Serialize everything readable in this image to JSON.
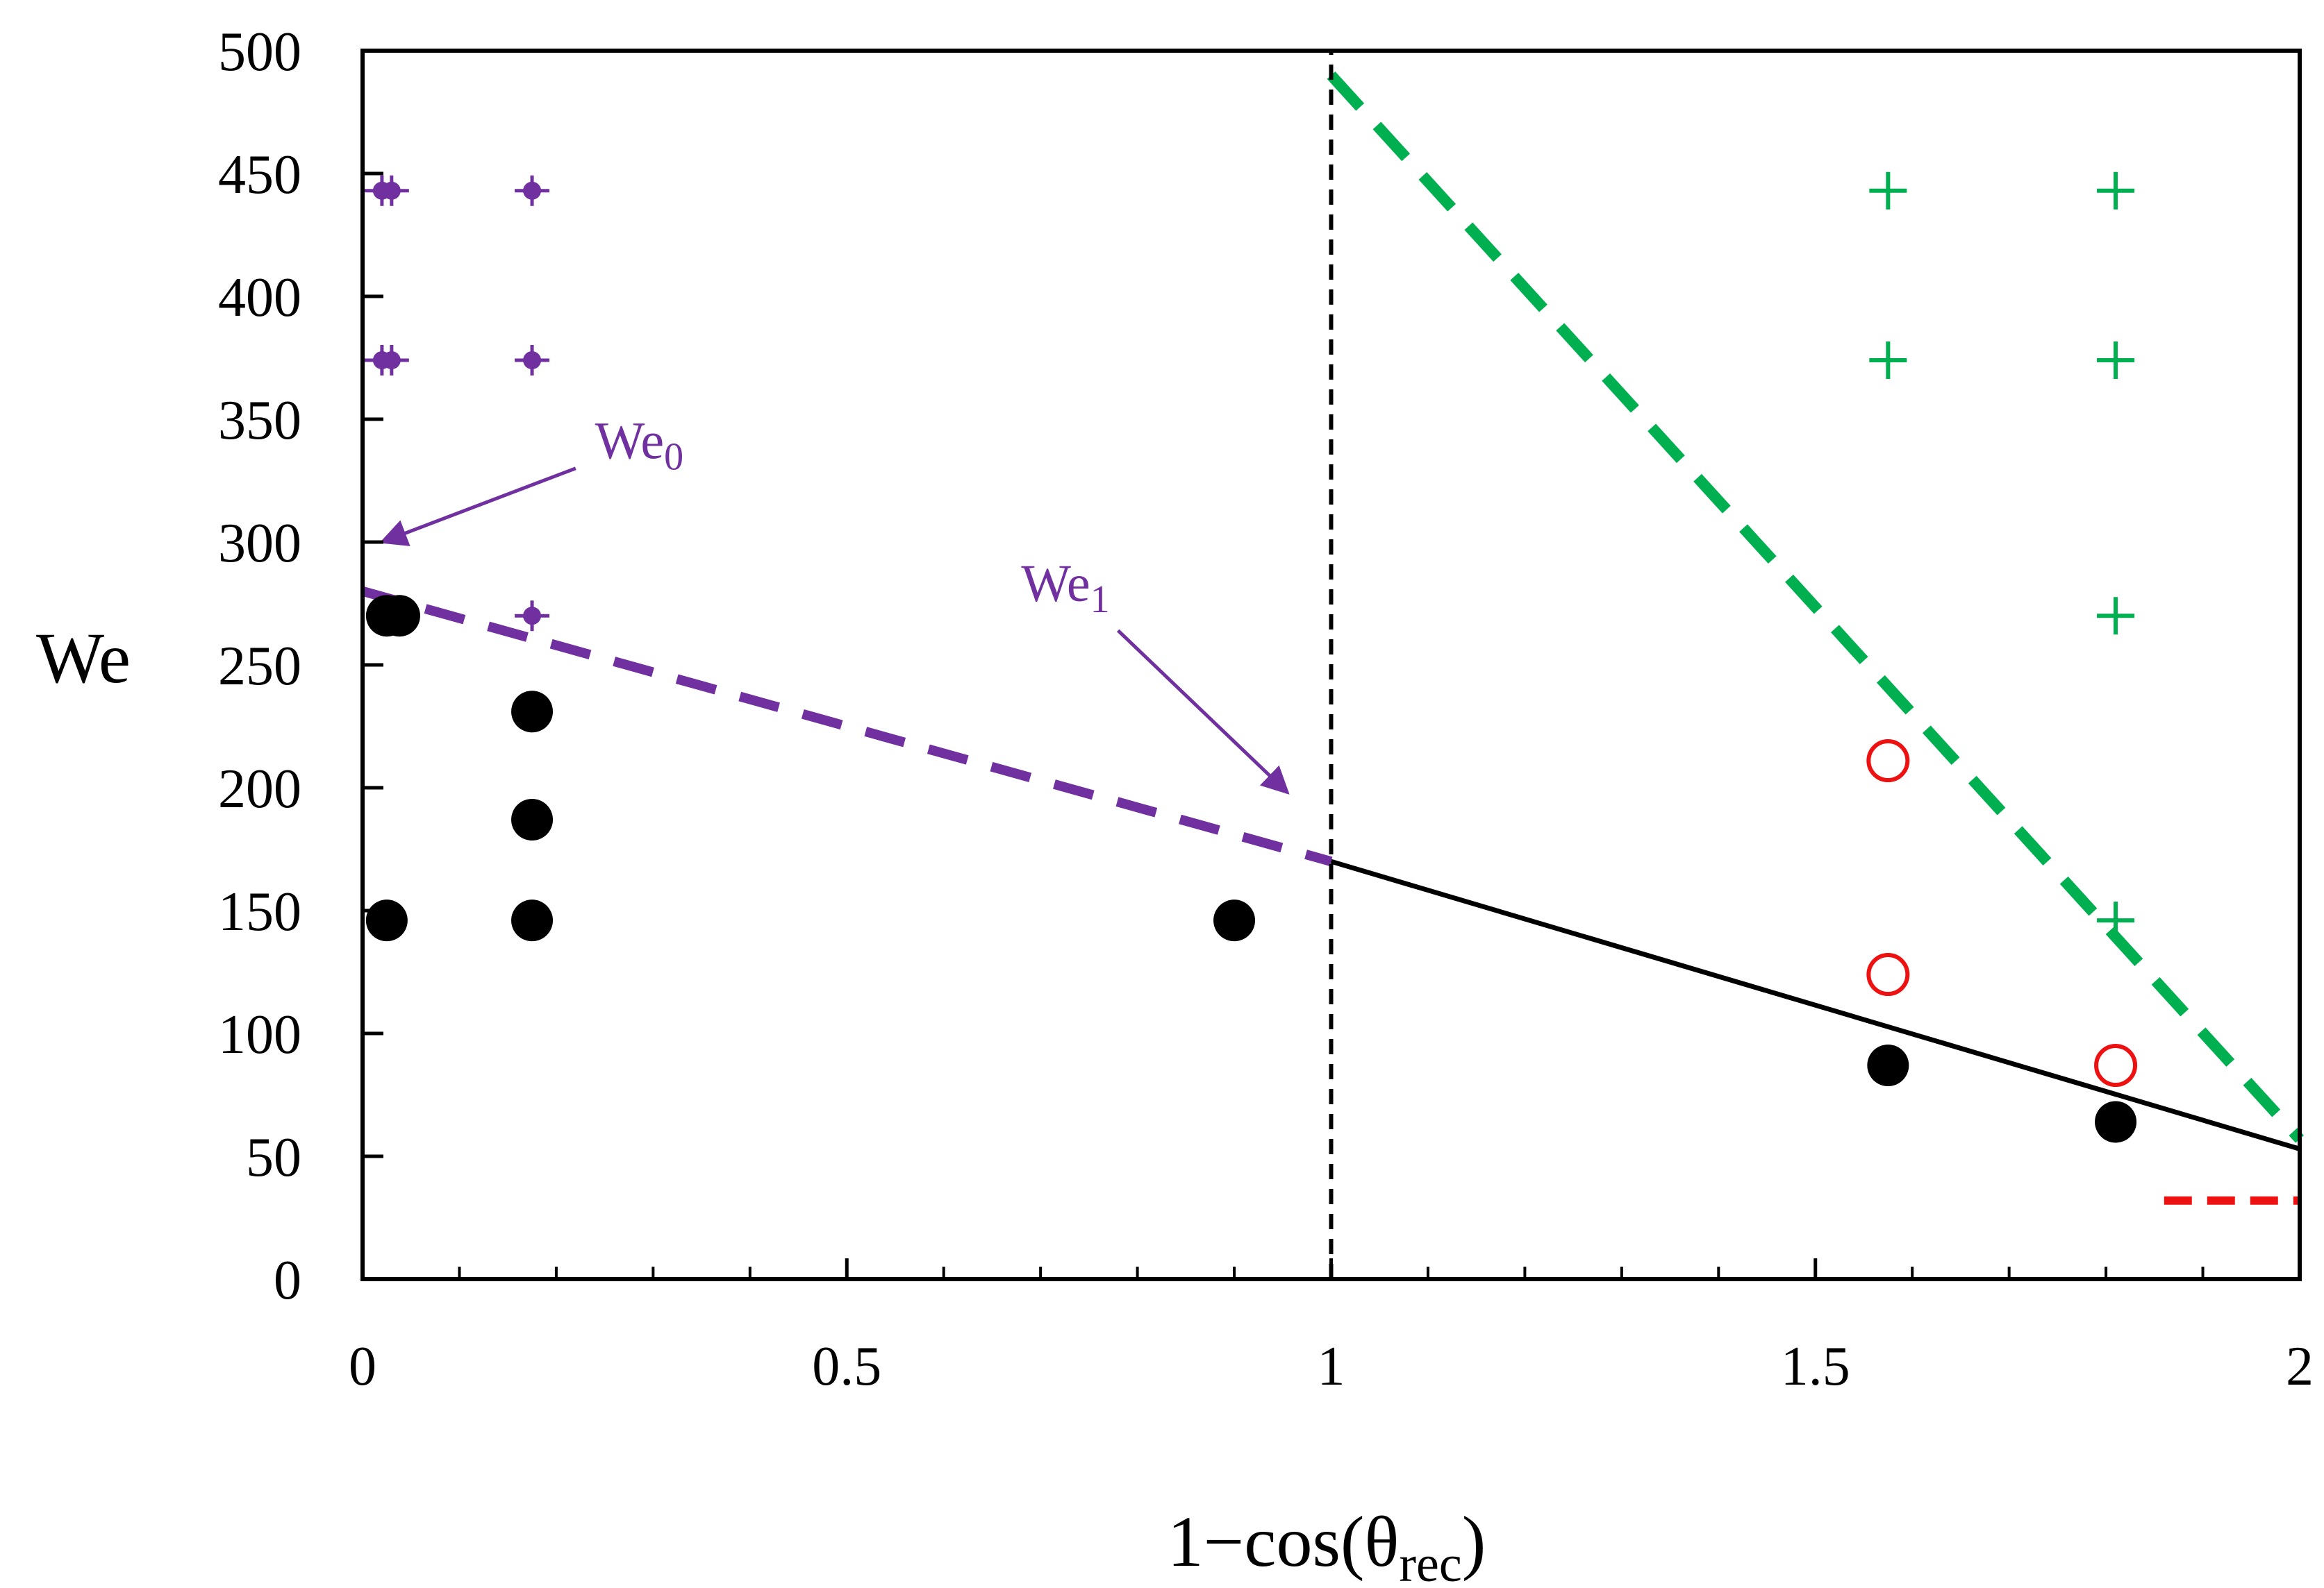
{
  "chart_data": {
    "type": "scatter",
    "title": "",
    "xlabel": {
      "main": "1−cos(θ",
      "sub": "rec",
      "close": ")"
    },
    "ylabel": "We",
    "xlim": [
      0,
      2
    ],
    "ylim": [
      0,
      500
    ],
    "xticks": [
      0,
      0.5,
      1,
      1.5,
      2
    ],
    "xtick_labels": [
      "0",
      "0.5",
      "1",
      "1.5",
      "2"
    ],
    "xminor": [
      0.1,
      0.2,
      0.3,
      0.4,
      0.6,
      0.7,
      0.8,
      0.9,
      1.1,
      1.2,
      1.3,
      1.4,
      1.6,
      1.7,
      1.8,
      1.9
    ],
    "yticks": [
      0,
      50,
      100,
      150,
      200,
      250,
      300,
      350,
      400,
      450,
      500
    ],
    "ytick_labels": [
      "0",
      "50",
      "100",
      "150",
      "200",
      "250",
      "300",
      "350",
      "400",
      "450",
      "500"
    ],
    "grid": false,
    "colors": {
      "purple": "#7030a0",
      "green": "#00b050",
      "red": "#ee1111",
      "black": "#000000"
    },
    "series": [
      {
        "name": "black-filled-circles",
        "marker": "filled-circle",
        "color": "#000000",
        "points": [
          [
            0.025,
            270
          ],
          [
            0.038,
            270
          ],
          [
            0.025,
            146
          ],
          [
            0.175,
            231
          ],
          [
            0.175,
            187
          ],
          [
            0.175,
            146
          ],
          [
            0.9,
            146
          ],
          [
            1.575,
            87
          ],
          [
            1.81,
            64
          ]
        ]
      },
      {
        "name": "purple-crosses-with-dots",
        "marker": "dot-cross",
        "color": "#7030a0",
        "points": [
          [
            0.02,
            443
          ],
          [
            0.03,
            443
          ],
          [
            0.175,
            443
          ],
          [
            0.02,
            374
          ],
          [
            0.03,
            374
          ],
          [
            0.175,
            374
          ],
          [
            0.175,
            270
          ]
        ]
      },
      {
        "name": "green-crosses",
        "marker": "plus",
        "color": "#00b050",
        "points": [
          [
            1.575,
            443
          ],
          [
            1.81,
            443
          ],
          [
            1.575,
            374
          ],
          [
            1.81,
            374
          ],
          [
            1.81,
            270
          ],
          [
            1.81,
            146
          ]
        ]
      },
      {
        "name": "red-open-circles",
        "marker": "open-circle",
        "color": "#ee1111",
        "points": [
          [
            1.575,
            211
          ],
          [
            1.575,
            124
          ],
          [
            1.81,
            87
          ]
        ]
      }
    ],
    "lines": [
      {
        "name": "purple-dashed-fit",
        "style": "dashed",
        "color": "#7030a0",
        "points": [
          [
            0,
            280
          ],
          [
            1,
            170
          ]
        ]
      },
      {
        "name": "black-solid-fit",
        "style": "solid",
        "color": "#000000",
        "points": [
          [
            1,
            170
          ],
          [
            2,
            53
          ]
        ]
      },
      {
        "name": "green-dashed-fit",
        "style": "dashed",
        "color": "#00b050",
        "points": [
          [
            1,
            490
          ],
          [
            2,
            57
          ]
        ]
      },
      {
        "name": "vertical-dashed-line",
        "style": "dashed-thin",
        "color": "#000000",
        "points": [
          [
            1,
            0
          ],
          [
            1,
            500
          ]
        ]
      },
      {
        "name": "red-dashed-segment",
        "style": "dashed",
        "color": "#ee1111",
        "points": [
          [
            1.86,
            32
          ],
          [
            2,
            32
          ]
        ]
      }
    ],
    "annotations": [
      {
        "name": "We0",
        "text": "We",
        "sub": "0",
        "color": "#7030a0",
        "text_at": [
          0.24,
          334
        ],
        "arrow_from": [
          0.22,
          330
        ],
        "arrow_to": [
          0.02,
          300
        ]
      },
      {
        "name": "We1",
        "text": "We",
        "sub": "1",
        "color": "#7030a0",
        "text_at": [
          0.68,
          276
        ],
        "arrow_from": [
          0.78,
          264
        ],
        "arrow_to": [
          0.955,
          198
        ]
      }
    ]
  }
}
